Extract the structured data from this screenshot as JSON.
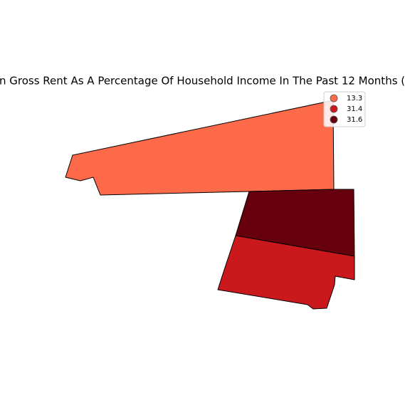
{
  "chart_data": {
    "type": "choropleth",
    "title": "n Gross Rent As A Percentage Of Household Income In The Past 12 Months (",
    "regions": [
      {
        "value": 13.3,
        "color": "#fc6a4a"
      },
      {
        "value": 31.4,
        "color": "#cb181d"
      },
      {
        "value": 31.6,
        "color": "#67000d"
      }
    ]
  }
}
